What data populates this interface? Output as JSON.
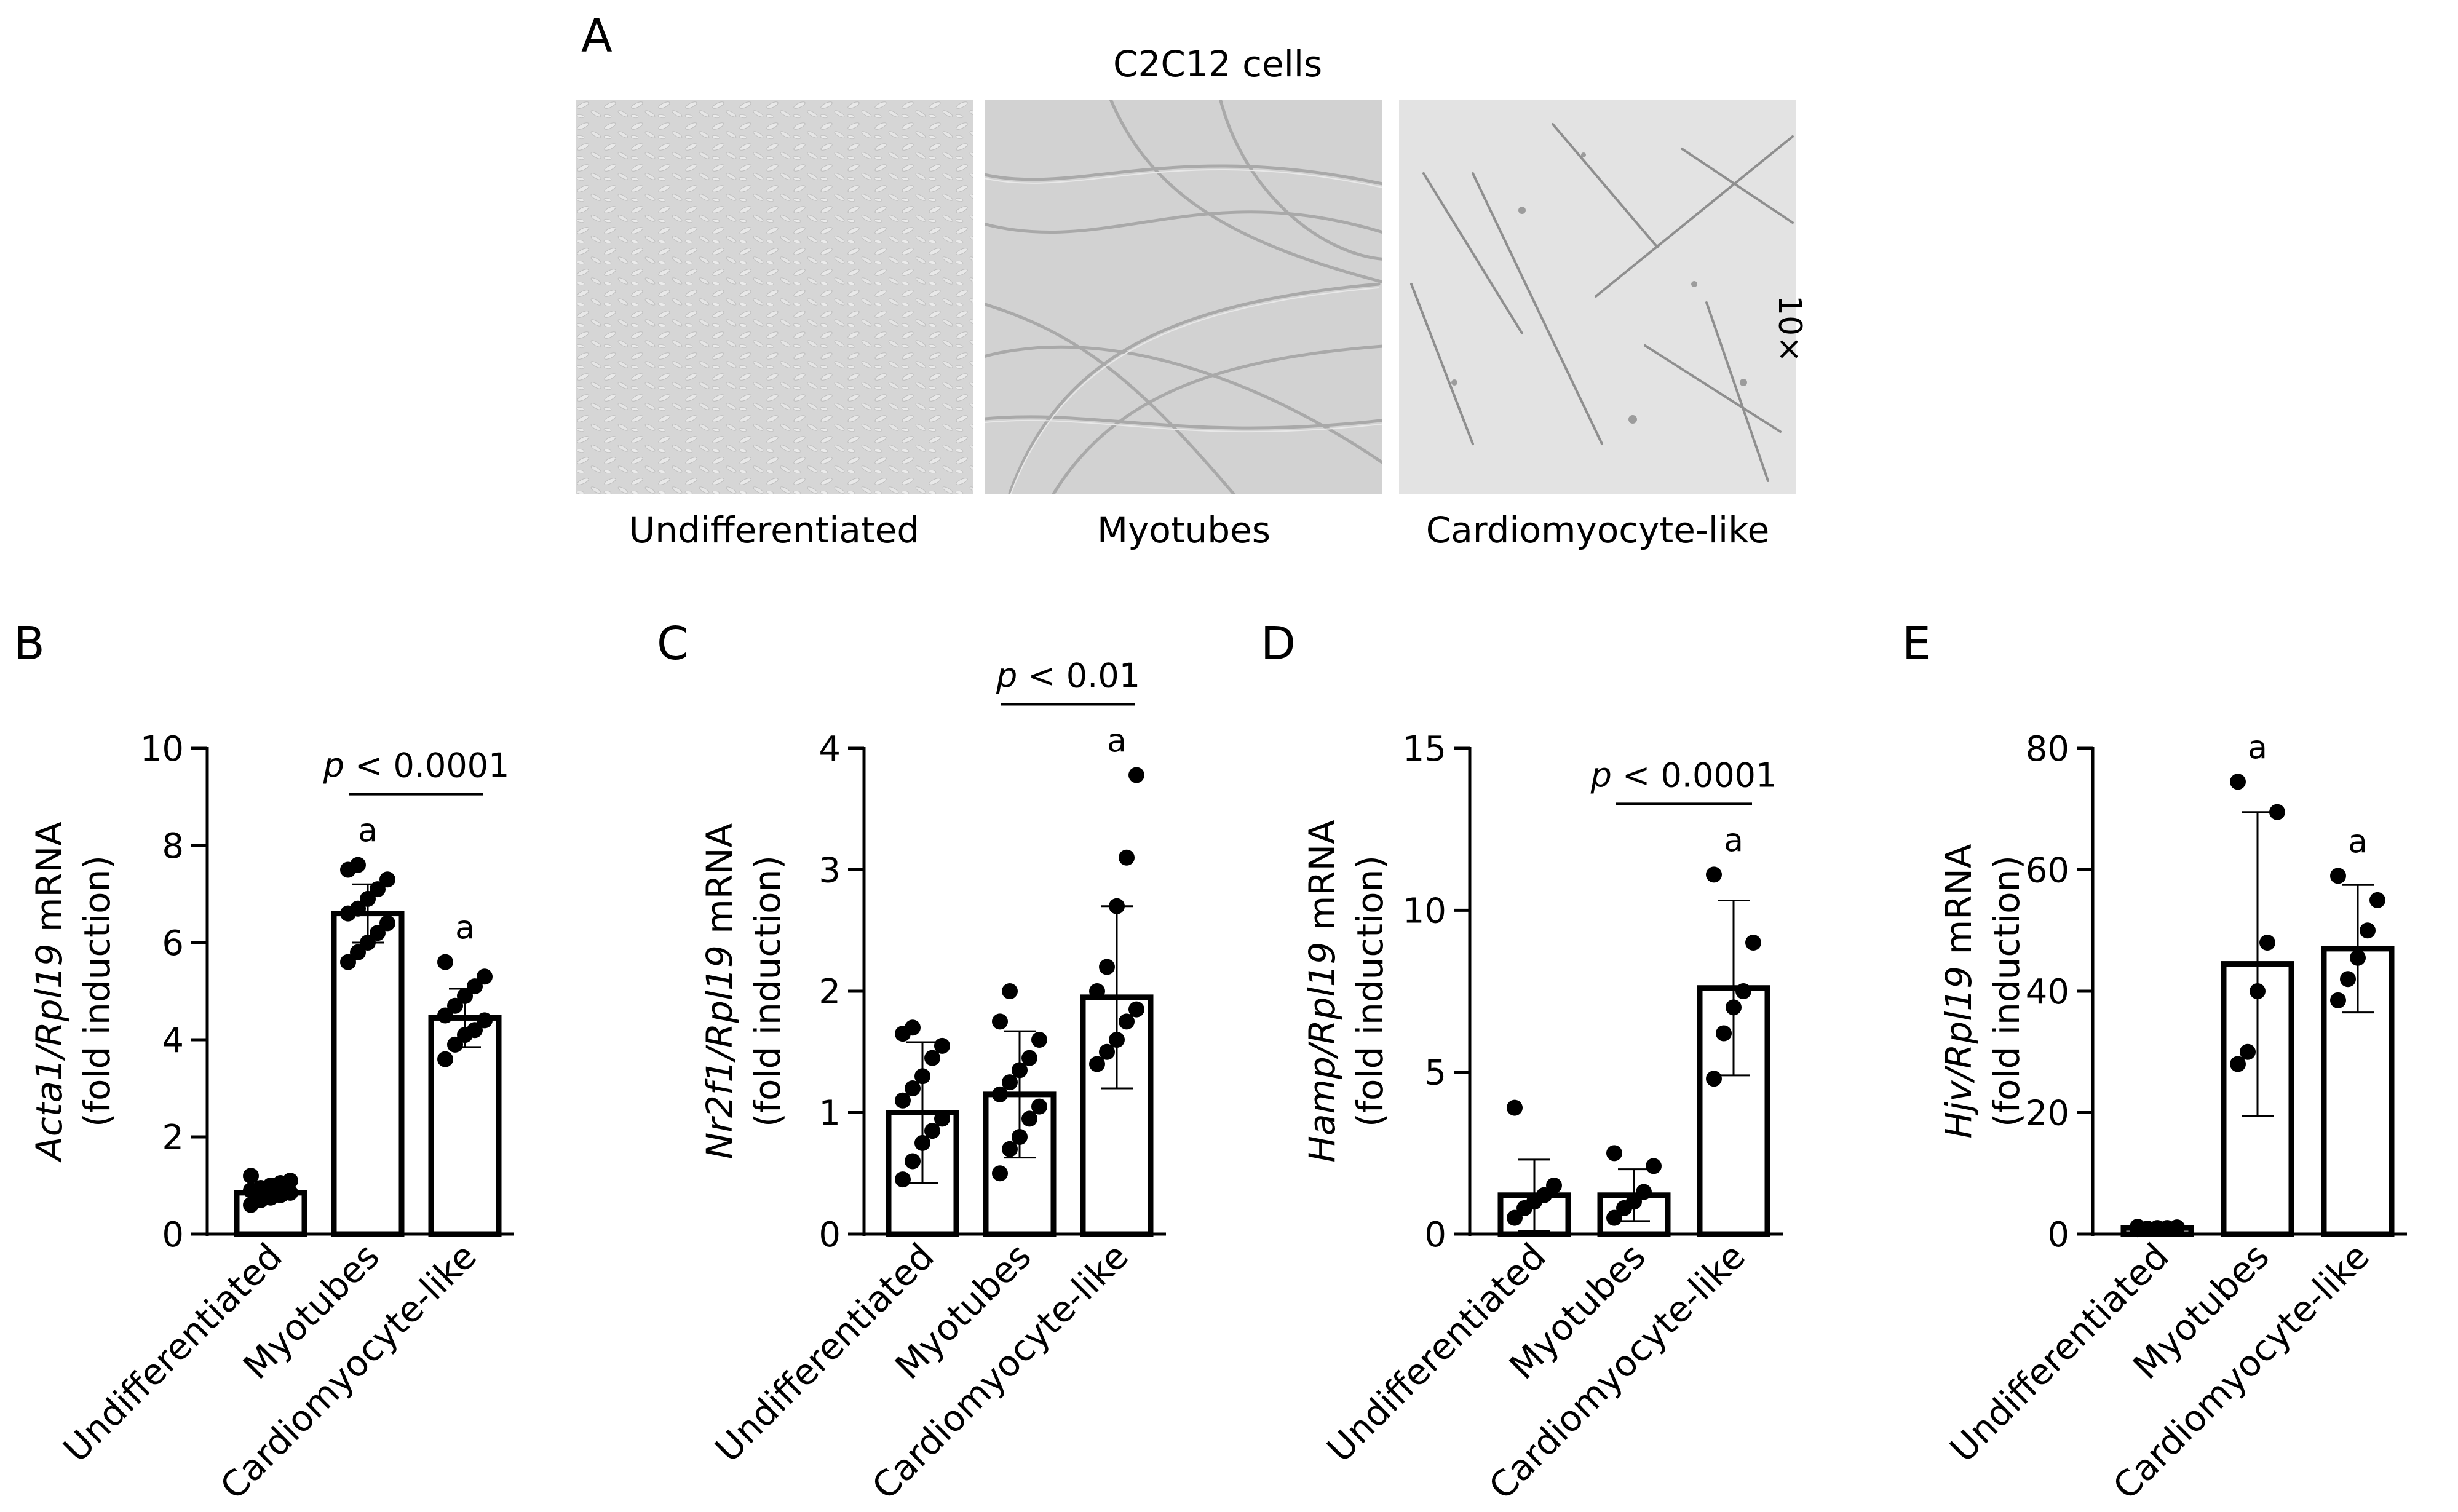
{
  "panel_letters": {
    "a": "A",
    "b": "B",
    "c": "C",
    "d": "D",
    "e": "E"
  },
  "micrographs": {
    "title": "C2C12 cells",
    "magnification": "10×",
    "labels": [
      "Undifferentiated",
      "Myotubes",
      "Cardiomyocyte-like"
    ]
  },
  "chart_data": [
    {
      "type": "bar",
      "panel": "B",
      "categories": [
        "Undifferentiated",
        "Myotubes",
        "Cardiomyocyte-like"
      ],
      "ylabel_gene": "Acta1/Rpl19",
      "ylabel_suffix": " mRNA",
      "ylabel_line2": "(fold induction)",
      "ylim": [
        0,
        10
      ],
      "yticks": [
        0,
        2,
        4,
        6,
        8,
        10
      ],
      "values": [
        0.85,
        6.6,
        4.45
      ],
      "sd": [
        0.15,
        0.6,
        0.6
      ],
      "points": [
        [
          0.6,
          0.7,
          0.75,
          0.8,
          0.85,
          0.9,
          0.95,
          1.0,
          1.05,
          1.1,
          1.2
        ],
        [
          5.6,
          5.8,
          6.0,
          6.2,
          6.4,
          6.6,
          6.7,
          6.9,
          7.1,
          7.3,
          7.5,
          7.6
        ],
        [
          3.6,
          3.9,
          4.1,
          4.2,
          4.4,
          4.5,
          4.7,
          4.9,
          5.1,
          5.3,
          5.6
        ]
      ],
      "sig_labels": [
        "",
        "a",
        "a"
      ],
      "comparison": {
        "from": 1,
        "to": 2,
        "label_italic": "p",
        "label_rest": " < 0.0001"
      }
    },
    {
      "type": "bar",
      "panel": "C",
      "categories": [
        "Undifferentiated",
        "Myotubes",
        "Cardiomyocyte-like"
      ],
      "ylabel_gene": "Nr2f1/Rpl19",
      "ylabel_suffix": " mRNA",
      "ylabel_line2": "(fold induction)",
      "ylim": [
        0,
        4
      ],
      "yticks": [
        0,
        1,
        2,
        3,
        4
      ],
      "values": [
        1.0,
        1.15,
        1.95
      ],
      "sd": [
        0.58,
        0.52,
        0.75
      ],
      "points": [
        [
          0.45,
          0.6,
          0.75,
          0.85,
          0.95,
          1.1,
          1.2,
          1.3,
          1.45,
          1.55,
          1.65,
          1.7
        ],
        [
          0.5,
          0.7,
          0.8,
          0.95,
          1.05,
          1.15,
          1.25,
          1.35,
          1.45,
          1.6,
          1.75,
          2.0
        ],
        [
          1.4,
          1.5,
          1.6,
          1.75,
          1.85,
          2.0,
          2.2,
          2.7,
          3.1,
          3.78
        ]
      ],
      "sig_labels": [
        "",
        "",
        "a"
      ],
      "comparison": {
        "from": 1,
        "to": 2,
        "label_italic": "p",
        "label_rest": " < 0.01"
      }
    },
    {
      "type": "bar",
      "panel": "D",
      "categories": [
        "Undifferentiated",
        "Myotubes",
        "Cardiomyocyte-like"
      ],
      "ylabel_gene": "Hamp/Rpl19",
      "ylabel_suffix": " mRNA",
      "ylabel_line2": "(fold induction)",
      "ylim": [
        0,
        15
      ],
      "yticks": [
        0,
        5,
        10,
        15
      ],
      "values": [
        1.2,
        1.2,
        7.6
      ],
      "sd": [
        1.1,
        0.8,
        2.7
      ],
      "points": [
        [
          0.5,
          0.8,
          1.0,
          1.2,
          1.5,
          3.9
        ],
        [
          0.5,
          0.8,
          1.0,
          1.3,
          2.1,
          2.5
        ],
        [
          4.8,
          6.2,
          7.0,
          7.5,
          9.0,
          11.1
        ]
      ],
      "sig_labels": [
        "",
        "",
        "a"
      ],
      "comparison": {
        "from": 1,
        "to": 2,
        "label_italic": "p",
        "label_rest": " < 0.0001"
      }
    },
    {
      "type": "bar",
      "panel": "E",
      "categories": [
        "Undifferentiated",
        "Myotubes",
        "Cardiomyocyte-like"
      ],
      "ylabel_gene": "Hjv/Rpl19",
      "ylabel_suffix": " mRNA",
      "ylabel_line2": "(fold induction)",
      "ylim": [
        0,
        80
      ],
      "yticks": [
        0,
        20,
        40,
        60,
        80
      ],
      "values": [
        1.0,
        44.5,
        47.0
      ],
      "sd": [
        0.3,
        25.0,
        10.5
      ],
      "points": [
        [
          0.8,
          0.9,
          1.0,
          1.0,
          1.1,
          1.2
        ],
        [
          28.0,
          30.0,
          40.0,
          48.0,
          69.5,
          74.5
        ],
        [
          38.5,
          42.0,
          45.5,
          50.0,
          55.0,
          59.0
        ]
      ],
      "sig_labels": [
        "",
        "a",
        "a"
      ],
      "comparison": null
    }
  ]
}
